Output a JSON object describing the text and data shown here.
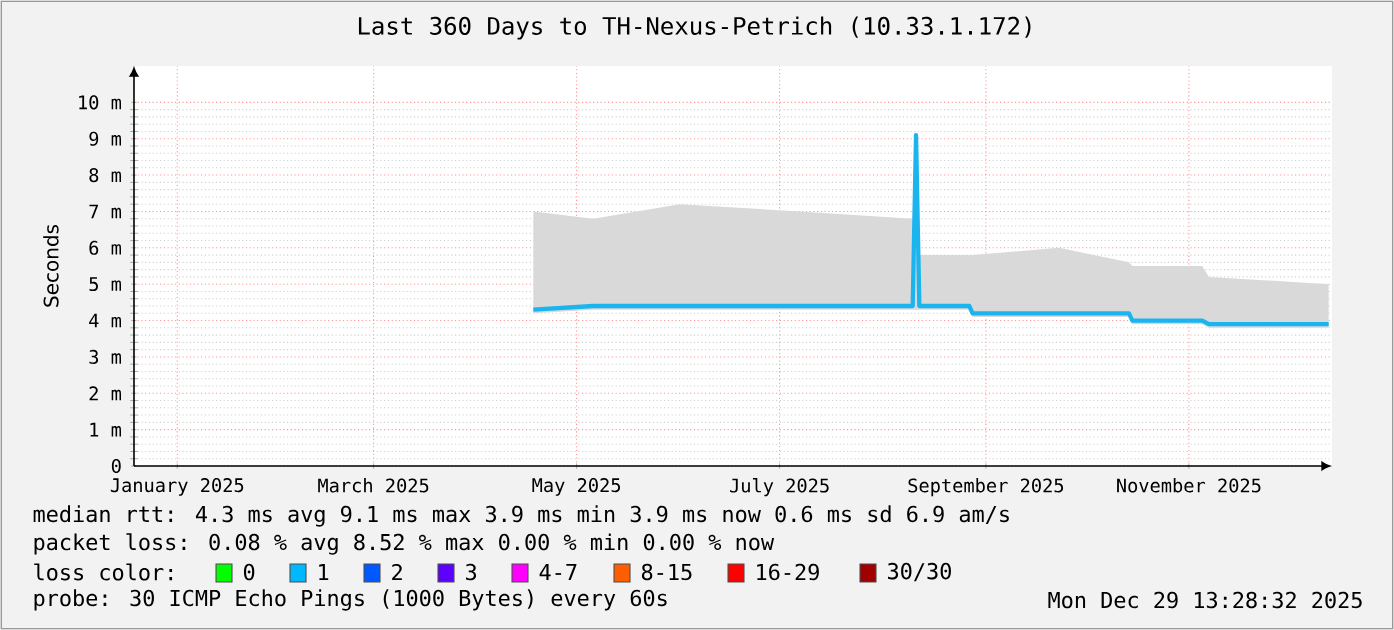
{
  "chart_data": {
    "type": "line",
    "title": "Last 360 Days to TH-Nexus-Petrich (10.33.1.172)",
    "ylabel": "Seconds",
    "xlim": [
      "2025-01-03",
      "2025-12-29"
    ],
    "xticks": [
      {
        "value": "2025-01-16",
        "label": "January 2025"
      },
      {
        "value": "2025-03-16",
        "label": "March 2025"
      },
      {
        "value": "2025-05-16",
        "label": "May 2025"
      },
      {
        "value": "2025-07-16",
        "label": "July 2025"
      },
      {
        "value": "2025-09-16",
        "label": "September 2025"
      },
      {
        "value": "2025-11-16",
        "label": "November 2025"
      }
    ],
    "ylim": [
      0,
      11
    ],
    "yticks": [
      0,
      {
        "value": 1,
        "label": "1 m"
      },
      {
        "value": 2,
        "label": "2 m"
      },
      {
        "value": 3,
        "label": "3 m"
      },
      {
        "value": 4,
        "label": "4 m"
      },
      {
        "value": 5,
        "label": "5 m"
      },
      {
        "value": 6,
        "label": "6 m"
      },
      {
        "value": 7,
        "label": "7 m"
      },
      {
        "value": 8,
        "label": "8 m"
      },
      {
        "value": 9,
        "label": "9 m"
      },
      {
        "value": 10,
        "label": "10 m"
      }
    ],
    "grid": true,
    "x": [
      "2025-05-03",
      "2025-05-21",
      "2025-06-16",
      "2025-07-22",
      "2025-08-25",
      "2025-08-26",
      "2025-08-27",
      "2025-09-11",
      "2025-09-12",
      "2025-10-08",
      "2025-10-29",
      "2025-10-30",
      "2025-11-20",
      "2025-11-22",
      "2025-12-28"
    ],
    "series": [
      {
        "color": "#1ab4ee",
        "values": [
          4.3,
          4.4,
          4.4,
          4.4,
          4.4,
          9.1,
          4.4,
          4.4,
          4.2,
          4.2,
          4.2,
          4.0,
          4.0,
          3.9,
          3.9
        ],
        "lower": [
          4.2,
          4.3,
          4.3,
          4.3,
          4.3,
          4.3,
          4.3,
          4.3,
          4.1,
          4.1,
          4.1,
          3.9,
          3.9,
          3.8,
          3.8
        ],
        "upper": [
          7.0,
          6.8,
          7.2,
          7.0,
          6.8,
          9.1,
          5.8,
          5.8,
          5.8,
          6.0,
          5.6,
          5.5,
          5.5,
          5.2,
          5.0
        ]
      }
    ],
    "annotations": [
      "median rtt: 4.3 ms avg 9.1 ms max 3.9 ms min 3.9 ms now 0.6 ms sd 6.9 am/s",
      "packet loss: 0.08 % avg 8.52 % max 0.00 % min 0.00 % now",
      "loss color:",
      "0",
      "1",
      "2",
      "3",
      "4-7",
      "8-15",
      "16-29",
      "30/30",
      "probe: 30 ICMP Echo Pings (1000 Bytes) every 60s",
      "Mon Dec 29 13:28:32 2025"
    ]
  }
}
